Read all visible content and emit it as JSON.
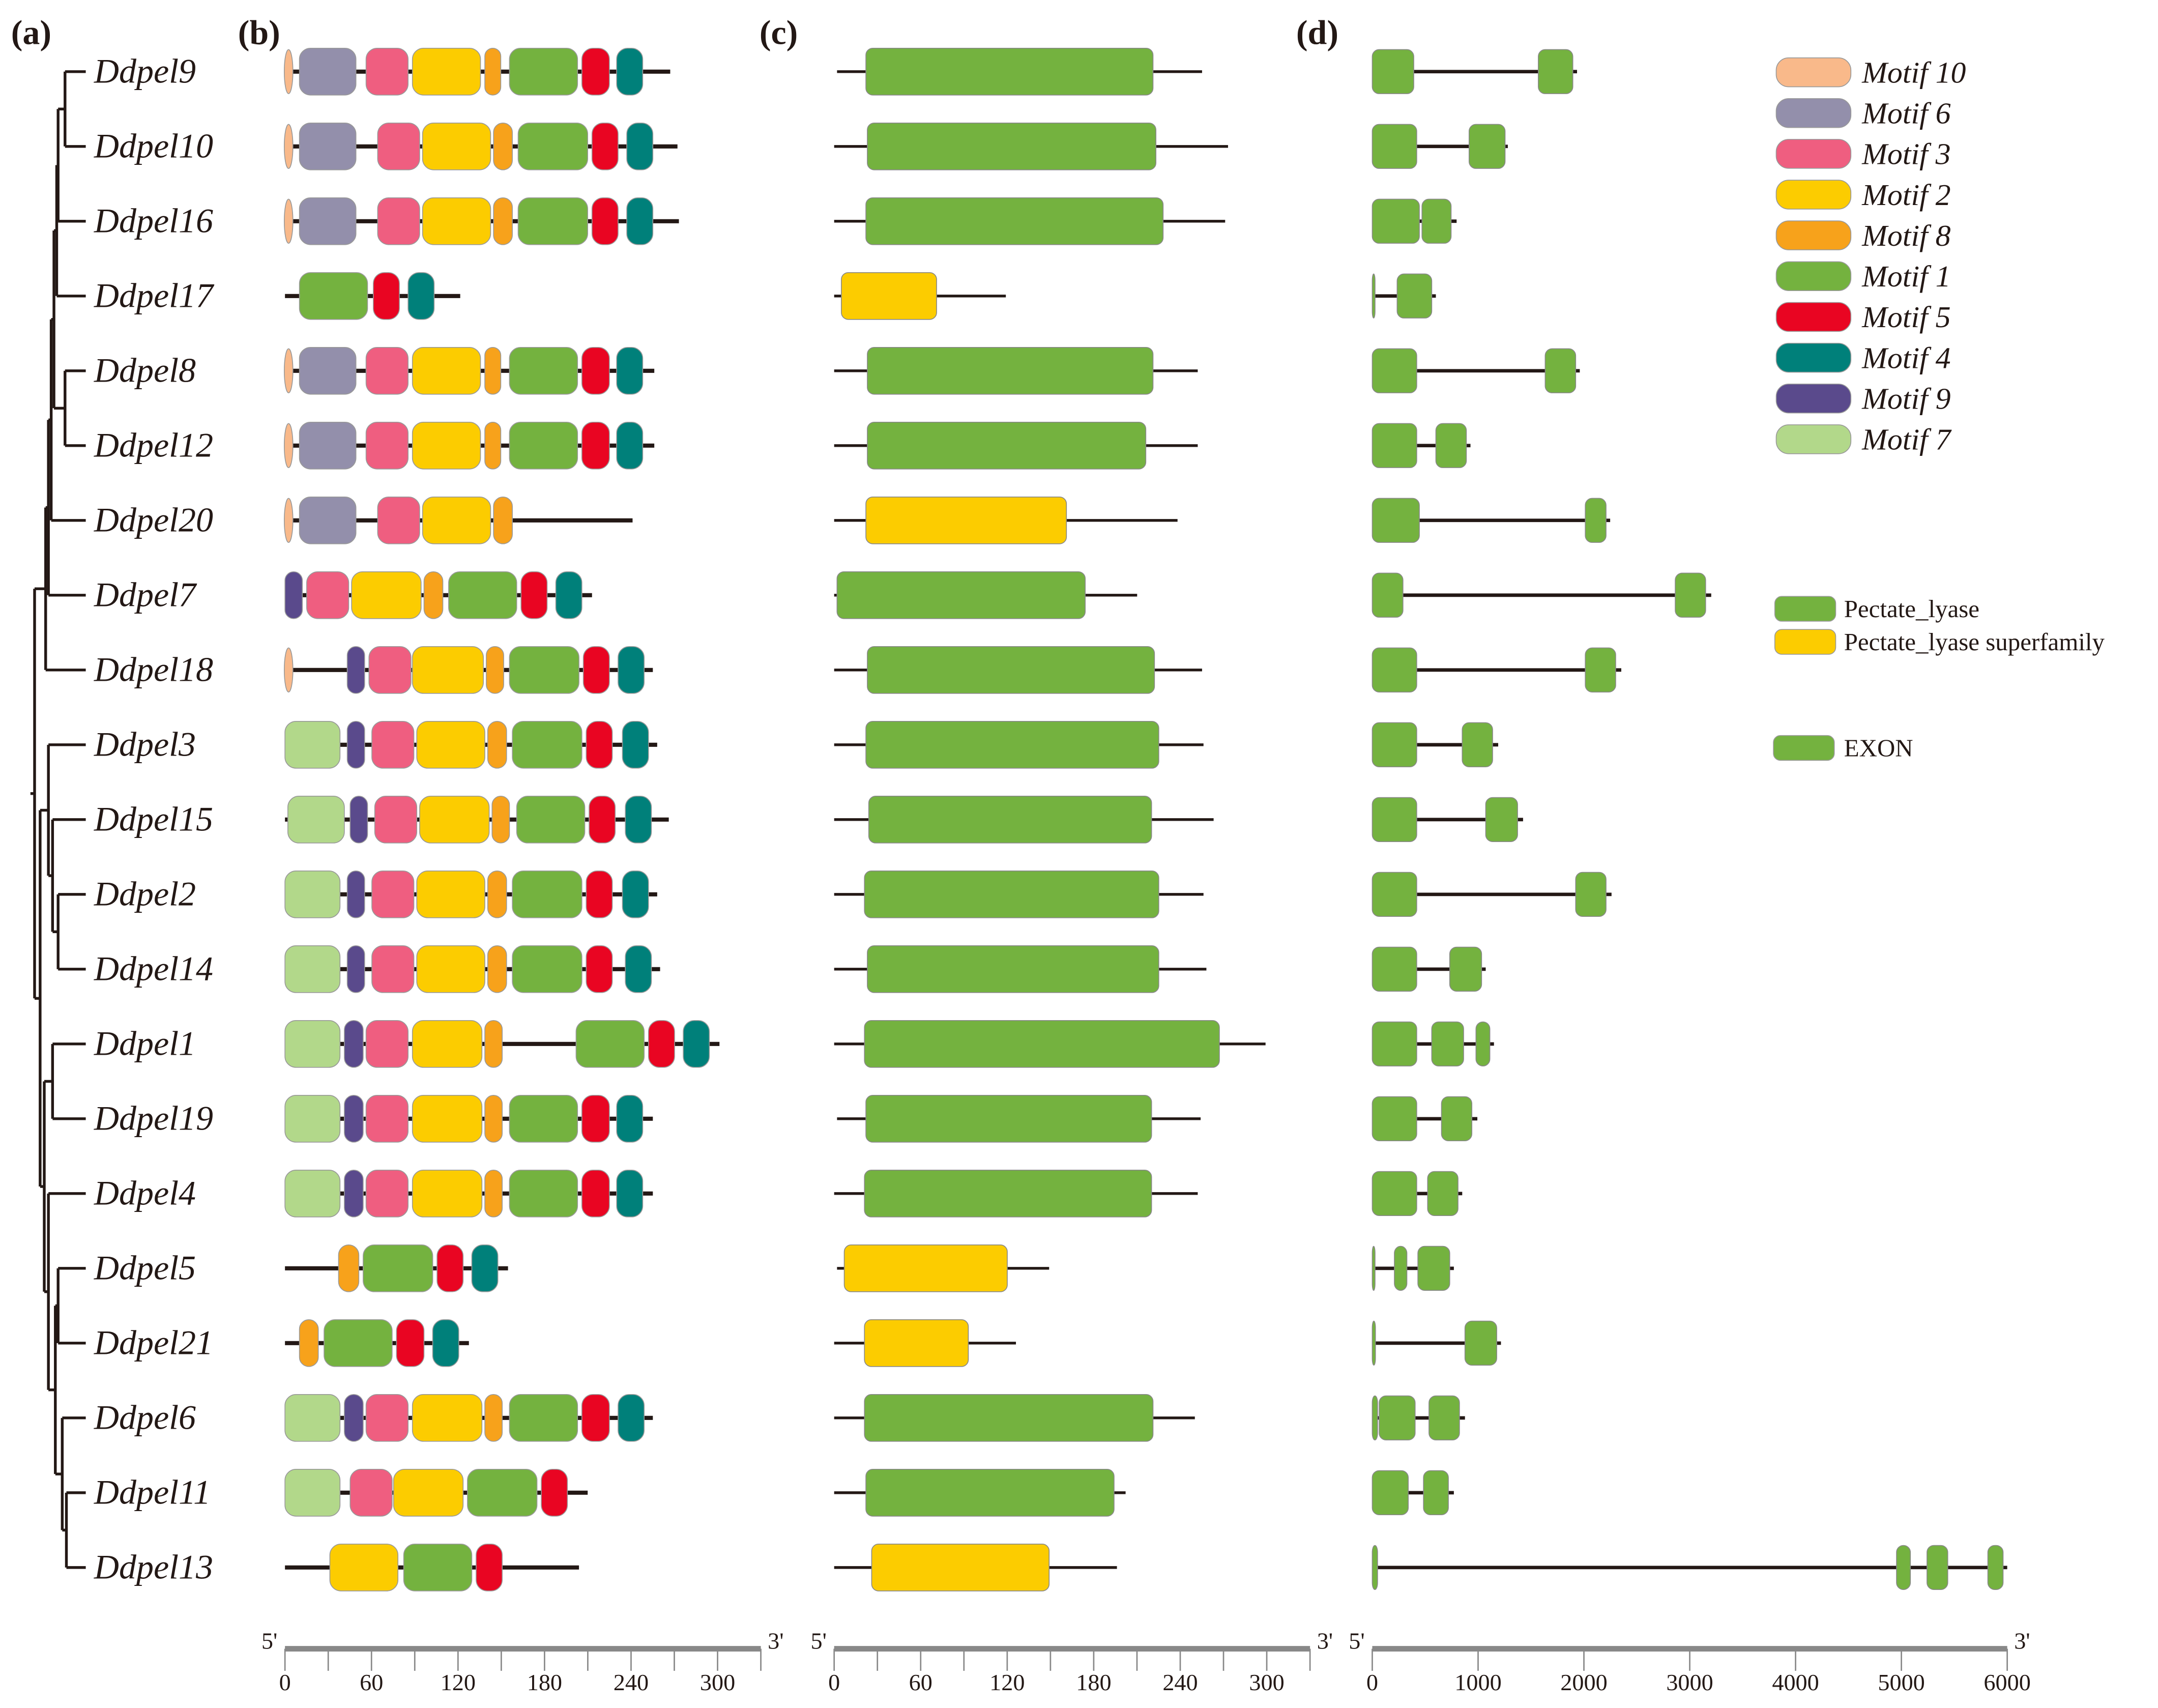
{
  "panel_labels": [
    "(a)",
    "(b)",
    "(c)",
    "(d)"
  ],
  "genes": [
    "Ddpel9",
    "Ddpel10",
    "Ddpel16",
    "Ddpel17",
    "Ddpel8",
    "Ddpel12",
    "Ddpel20",
    "Ddpel7",
    "Ddpel18",
    "Ddpel3",
    "Ddpel15",
    "Ddpel2",
    "Ddpel14",
    "Ddpel1",
    "Ddpel19",
    "Ddpel4",
    "Ddpel5",
    "Ddpel21",
    "Ddpel6",
    "Ddpel11",
    "Ddpel13"
  ],
  "motif_colors": {
    "10": "#F9B98A",
    "6": "#938FAB",
    "3": "#EF5E80",
    "2": "#FCCC00",
    "8": "#F7A21B",
    "1": "#74B23F",
    "5": "#E90522",
    "4": "#00807A",
    "9": "#5A4A8C",
    "7": "#B2D88A"
  },
  "legend_motifs": [
    {
      "id": "10",
      "label": "Motif 10"
    },
    {
      "id": "6",
      "label": "Motif 6"
    },
    {
      "id": "3",
      "label": "Motif 3"
    },
    {
      "id": "2",
      "label": "Motif 2"
    },
    {
      "id": "8",
      "label": "Motif 8"
    },
    {
      "id": "1",
      "label": "Motif 1"
    },
    {
      "id": "5",
      "label": "Motif 5"
    },
    {
      "id": "4",
      "label": "Motif 4"
    },
    {
      "id": "9",
      "label": "Motif 9"
    },
    {
      "id": "7",
      "label": "Motif 7"
    }
  ],
  "legend_domains": [
    {
      "label": "Pectate_lyase",
      "color": "#74B23F"
    },
    {
      "label": "Pectate_lyase superfamily",
      "color": "#FCCC00"
    }
  ],
  "legend_exon": {
    "label": "EXON",
    "color": "#74B23F"
  },
  "motifs": [
    {
      "len": 266,
      "m": [
        [
          "10",
          0,
          5
        ],
        [
          "6",
          10,
          49
        ],
        [
          "3",
          56,
          85
        ],
        [
          "2",
          88,
          135
        ],
        [
          "8",
          138,
          149
        ],
        [
          "1",
          155,
          202
        ],
        [
          "5",
          205,
          224
        ],
        [
          "4",
          229,
          247
        ]
      ]
    },
    {
      "len": 271,
      "m": [
        [
          "10",
          0,
          5
        ],
        [
          "6",
          10,
          49
        ],
        [
          "3",
          64,
          93
        ],
        [
          "2",
          95,
          142
        ],
        [
          "8",
          144,
          157
        ],
        [
          "1",
          161,
          209
        ],
        [
          "5",
          212,
          230
        ],
        [
          "4",
          236,
          254
        ]
      ]
    },
    {
      "len": 272,
      "m": [
        [
          "10",
          0,
          5
        ],
        [
          "6",
          10,
          49
        ],
        [
          "3",
          64,
          93
        ],
        [
          "2",
          95,
          142
        ],
        [
          "8",
          144,
          157
        ],
        [
          "1",
          161,
          209
        ],
        [
          "5",
          212,
          230
        ],
        [
          "4",
          236,
          254
        ]
      ]
    },
    {
      "len": 121,
      "m": [
        [
          "1",
          10,
          57
        ],
        [
          "5",
          61,
          79
        ],
        [
          "4",
          85,
          103
        ]
      ]
    },
    {
      "len": 255,
      "m": [
        [
          "10",
          0,
          5
        ],
        [
          "6",
          10,
          49
        ],
        [
          "3",
          56,
          85
        ],
        [
          "2",
          88,
          135
        ],
        [
          "8",
          138,
          149
        ],
        [
          "1",
          155,
          202
        ],
        [
          "5",
          205,
          224
        ],
        [
          "4",
          229,
          247
        ]
      ]
    },
    {
      "len": 255,
      "m": [
        [
          "10",
          0,
          5
        ],
        [
          "6",
          10,
          49
        ],
        [
          "3",
          56,
          85
        ],
        [
          "2",
          88,
          135
        ],
        [
          "8",
          138,
          149
        ],
        [
          "1",
          155,
          202
        ],
        [
          "5",
          205,
          224
        ],
        [
          "4",
          229,
          247
        ]
      ]
    },
    {
      "len": 240,
      "m": [
        [
          "10",
          0,
          5
        ],
        [
          "6",
          10,
          49
        ],
        [
          "3",
          64,
          93
        ],
        [
          "2",
          95,
          142
        ],
        [
          "8",
          144,
          157
        ]
      ]
    },
    {
      "len": 212,
      "m": [
        [
          "9",
          0,
          12
        ],
        [
          "3",
          15,
          44
        ],
        [
          "2",
          46,
          94
        ],
        [
          "8",
          96,
          109
        ],
        [
          "1",
          113,
          160
        ],
        [
          "5",
          163,
          181
        ],
        [
          "4",
          187,
          205
        ]
      ]
    },
    {
      "len": 254,
      "m": [
        [
          "10",
          0,
          5
        ],
        [
          "9",
          43,
          55
        ],
        [
          "3",
          58,
          87
        ],
        [
          "2",
          88,
          137
        ],
        [
          "8",
          139,
          151
        ],
        [
          "1",
          155,
          203
        ],
        [
          "5",
          206,
          224
        ],
        [
          "4",
          230,
          248
        ]
      ]
    },
    {
      "len": 257,
      "m": [
        [
          "7",
          0,
          38
        ],
        [
          "9",
          43,
          55
        ],
        [
          "3",
          60,
          89
        ],
        [
          "2",
          91,
          138
        ],
        [
          "8",
          140,
          153
        ],
        [
          "1",
          157,
          205
        ],
        [
          "5",
          208,
          226
        ],
        [
          "4",
          233,
          251
        ]
      ]
    },
    {
      "len": 265,
      "m": [
        [
          "7",
          2,
          41
        ],
        [
          "9",
          45,
          57
        ],
        [
          "3",
          62,
          91
        ],
        [
          "2",
          93,
          141
        ],
        [
          "8",
          143,
          155
        ],
        [
          "1",
          160,
          207
        ],
        [
          "5",
          210,
          228
        ],
        [
          "4",
          235,
          253
        ]
      ]
    },
    {
      "len": 257,
      "m": [
        [
          "7",
          0,
          38
        ],
        [
          "9",
          43,
          55
        ],
        [
          "3",
          60,
          89
        ],
        [
          "2",
          91,
          138
        ],
        [
          "8",
          140,
          153
        ],
        [
          "1",
          157,
          205
        ],
        [
          "5",
          208,
          226
        ],
        [
          "4",
          233,
          251
        ]
      ]
    },
    {
      "len": 259,
      "m": [
        [
          "7",
          0,
          38
        ],
        [
          "9",
          43,
          55
        ],
        [
          "3",
          60,
          89
        ],
        [
          "2",
          91,
          138
        ],
        [
          "8",
          140,
          153
        ],
        [
          "1",
          157,
          205
        ],
        [
          "5",
          208,
          226
        ],
        [
          "4",
          235,
          253
        ]
      ]
    },
    {
      "len": 300,
      "m": [
        [
          "7",
          0,
          38
        ],
        [
          "9",
          41,
          54
        ],
        [
          "3",
          56,
          85
        ],
        [
          "2",
          88,
          136
        ],
        [
          "8",
          138,
          150
        ],
        [
          "1",
          201,
          248
        ],
        [
          "5",
          251,
          269
        ],
        [
          "4",
          275,
          293
        ]
      ]
    },
    {
      "len": 254,
      "m": [
        [
          "7",
          0,
          38
        ],
        [
          "9",
          41,
          54
        ],
        [
          "3",
          56,
          85
        ],
        [
          "2",
          88,
          136
        ],
        [
          "8",
          138,
          150
        ],
        [
          "1",
          155,
          202
        ],
        [
          "5",
          205,
          224
        ],
        [
          "4",
          229,
          247
        ]
      ]
    },
    {
      "len": 254,
      "m": [
        [
          "7",
          0,
          38
        ],
        [
          "9",
          41,
          54
        ],
        [
          "3",
          56,
          85
        ],
        [
          "2",
          88,
          136
        ],
        [
          "8",
          138,
          150
        ],
        [
          "1",
          155,
          202
        ],
        [
          "5",
          205,
          224
        ],
        [
          "4",
          229,
          247
        ]
      ]
    },
    {
      "len": 154,
      "m": [
        [
          "8",
          37,
          51
        ],
        [
          "1",
          54,
          102
        ],
        [
          "5",
          105,
          123
        ],
        [
          "4",
          129,
          147
        ]
      ]
    },
    {
      "len": 127,
      "m": [
        [
          "8",
          10,
          23
        ],
        [
          "1",
          27,
          74
        ],
        [
          "5",
          77,
          96
        ],
        [
          "4",
          102,
          120
        ]
      ]
    },
    {
      "len": 254,
      "m": [
        [
          "7",
          0,
          38
        ],
        [
          "9",
          41,
          54
        ],
        [
          "3",
          56,
          85
        ],
        [
          "2",
          88,
          136
        ],
        [
          "8",
          138,
          150
        ],
        [
          "1",
          155,
          202
        ],
        [
          "5",
          205,
          224
        ],
        [
          "4",
          230,
          248
        ]
      ]
    },
    {
      "len": 209,
      "m": [
        [
          "7",
          0,
          38
        ],
        [
          "3",
          45,
          74
        ],
        [
          "2",
          75,
          123
        ],
        [
          "1",
          126,
          174
        ],
        [
          "5",
          177,
          195
        ]
      ]
    },
    {
      "len": 203,
      "m": [
        [
          "2",
          31,
          78
        ],
        [
          "1",
          82,
          129
        ],
        [
          "5",
          132,
          150
        ]
      ]
    }
  ],
  "domains": [
    {
      "s": 2,
      "e": 255,
      "ds": 22,
      "de": 221,
      "t": "Pectate_lyase"
    },
    {
      "s": 0,
      "e": 273,
      "ds": 23,
      "de": 223,
      "t": "Pectate_lyase"
    },
    {
      "s": 0,
      "e": 271,
      "ds": 22,
      "de": 228,
      "t": "Pectate_lyase"
    },
    {
      "s": 0,
      "e": 119,
      "ds": 5,
      "de": 71,
      "t": "Pectate_lyase superfamily"
    },
    {
      "s": 0,
      "e": 252,
      "ds": 23,
      "de": 221,
      "t": "Pectate_lyase"
    },
    {
      "s": 0,
      "e": 252,
      "ds": 23,
      "de": 216,
      "t": "Pectate_lyase"
    },
    {
      "s": 0,
      "e": 238,
      "ds": 22,
      "de": 161,
      "t": "Pectate_lyase superfamily"
    },
    {
      "s": 0,
      "e": 210,
      "ds": 2,
      "de": 174,
      "t": "Pectate_lyase"
    },
    {
      "s": 0,
      "e": 255,
      "ds": 23,
      "de": 222,
      "t": "Pectate_lyase"
    },
    {
      "s": 0,
      "e": 256,
      "ds": 22,
      "de": 225,
      "t": "Pectate_lyase"
    },
    {
      "s": 0,
      "e": 263,
      "ds": 24,
      "de": 220,
      "t": "Pectate_lyase"
    },
    {
      "s": 0,
      "e": 256,
      "ds": 21,
      "de": 225,
      "t": "Pectate_lyase"
    },
    {
      "s": 0,
      "e": 258,
      "ds": 23,
      "de": 225,
      "t": "Pectate_lyase"
    },
    {
      "s": 0,
      "e": 299,
      "ds": 21,
      "de": 267,
      "t": "Pectate_lyase"
    },
    {
      "s": 2,
      "e": 254,
      "ds": 22,
      "de": 220,
      "t": "Pectate_lyase"
    },
    {
      "s": 0,
      "e": 252,
      "ds": 21,
      "de": 220,
      "t": "Pectate_lyase"
    },
    {
      "s": 2,
      "e": 149,
      "ds": 7,
      "de": 120,
      "t": "Pectate_lyase superfamily"
    },
    {
      "s": 0,
      "e": 126,
      "ds": 21,
      "de": 93,
      "t": "Pectate_lyase superfamily"
    },
    {
      "s": 0,
      "e": 250,
      "ds": 21,
      "de": 221,
      "t": "Pectate_lyase"
    },
    {
      "s": 0,
      "e": 202,
      "ds": 22,
      "de": 194,
      "t": "Pectate_lyase"
    },
    {
      "s": 0,
      "e": 196,
      "ds": 26,
      "de": 149,
      "t": "Pectate_lyase superfamily"
    }
  ],
  "gene_structure": [
    {
      "len": 1935,
      "exons": [
        [
          0,
          392
        ],
        [
          1569,
          1895
        ]
      ]
    },
    {
      "len": 1281,
      "exons": [
        [
          0,
          420
        ],
        [
          915,
          1255
        ]
      ]
    },
    {
      "len": 797,
      "exons": [
        [
          0,
          445
        ],
        [
          470,
          745
        ]
      ]
    },
    {
      "len": 601,
      "exons": [
        [
          0,
          15
        ],
        [
          235,
          562
        ]
      ]
    },
    {
      "len": 1961,
      "exons": [
        [
          0,
          420
        ],
        [
          1634,
          1922
        ]
      ]
    },
    {
      "len": 928,
      "exons": [
        [
          0,
          420
        ],
        [
          601,
          889
        ]
      ]
    },
    {
      "len": 2248,
      "exons": [
        [
          0,
          445
        ],
        [
          2013,
          2209
        ]
      ]
    },
    {
      "len": 3203,
      "exons": [
        [
          0,
          290
        ],
        [
          2863,
          3150
        ]
      ]
    },
    {
      "len": 2353,
      "exons": [
        [
          0,
          420
        ],
        [
          2013,
          2300
        ]
      ]
    },
    {
      "len": 1190,
      "exons": [
        [
          0,
          420
        ],
        [
          850,
          1137
        ]
      ]
    },
    {
      "len": 1425,
      "exons": [
        [
          0,
          420
        ],
        [
          1072,
          1373
        ]
      ]
    },
    {
      "len": 2261,
      "exons": [
        [
          0,
          420
        ],
        [
          1922,
          2209
        ]
      ]
    },
    {
      "len": 1072,
      "exons": [
        [
          0,
          420
        ],
        [
          732,
          1033
        ]
      ]
    },
    {
      "len": 1150,
      "exons": [
        [
          0,
          420
        ],
        [
          562,
          863
        ],
        [
          980,
          1111
        ]
      ]
    },
    {
      "len": 993,
      "exons": [
        [
          0,
          420
        ],
        [
          654,
          941
        ]
      ]
    },
    {
      "len": 850,
      "exons": [
        [
          0,
          420
        ],
        [
          523,
          810
        ]
      ]
    },
    {
      "len": 771,
      "exons": [
        [
          0,
          15
        ],
        [
          209,
          327
        ],
        [
          431,
          732
        ]
      ]
    },
    {
      "len": 1216,
      "exons": [
        [
          0,
          30
        ],
        [
          876,
          1176
        ]
      ]
    },
    {
      "len": 876,
      "exons": [
        [
          0,
          50
        ],
        [
          65,
          405
        ],
        [
          536,
          824
        ]
      ]
    },
    {
      "len": 771,
      "exons": [
        [
          0,
          340
        ],
        [
          484,
          719
        ]
      ]
    },
    {
      "len": 6000,
      "exons": [
        [
          0,
          50
        ],
        [
          4954,
          5085
        ],
        [
          5242,
          5438
        ],
        [
          5817,
          5961
        ]
      ]
    }
  ],
  "axes": [
    {
      "five": "5'",
      "three": "3'",
      "max": 330,
      "tick_step": 30,
      "labels": [
        "0",
        "60",
        "120",
        "180",
        "240",
        "300"
      ],
      "label_values": [
        0,
        60,
        120,
        180,
        240,
        300
      ]
    },
    {
      "five": "5'",
      "three": "3'",
      "max": 330,
      "tick_step": 30,
      "labels": [
        "0",
        "60",
        "120",
        "180",
        "240",
        "300"
      ],
      "label_values": [
        0,
        60,
        120,
        180,
        240,
        300
      ]
    },
    {
      "five": "5'",
      "three": "3'",
      "max": 6000,
      "tick_step": 1000,
      "labels": [
        "0",
        "1000",
        "2000",
        "3000",
        "4000",
        "5000",
        "6000"
      ],
      "label_values": [
        0,
        1000,
        2000,
        3000,
        4000,
        5000,
        6000
      ]
    }
  ]
}
